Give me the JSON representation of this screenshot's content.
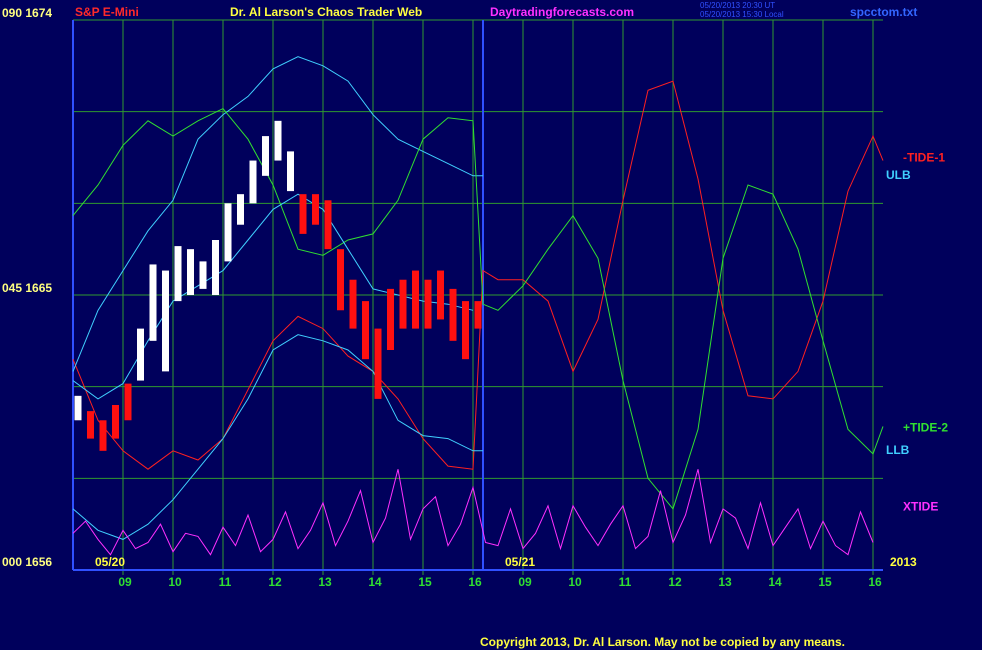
{
  "chart_data": {
    "type": "line",
    "symbol": "S&P E-Mini",
    "title": "Dr. Al Larson's Chaos Trader Web",
    "site": "Daytradingforecasts.com",
    "timestamps": [
      "05/20/2013 20:30 UT",
      "05/20/2013 15:30 Local"
    ],
    "file": "spcctom.txt",
    "copyright": "Copyright 2013, Dr. Al Larson. May not be copied by any means.",
    "year": "2013",
    "days": [
      {
        "label": "05/20",
        "x": 0
      },
      {
        "label": "05/21",
        "x": 8.2
      }
    ],
    "divider_x": 8.2,
    "xlim": [
      0,
      16.2
    ],
    "xticks": [
      {
        "value": 1,
        "label": "09"
      },
      {
        "value": 2,
        "label": "10"
      },
      {
        "value": 3,
        "label": "11"
      },
      {
        "value": 4,
        "label": "12"
      },
      {
        "value": 5,
        "label": "13"
      },
      {
        "value": 6,
        "label": "14"
      },
      {
        "value": 7,
        "label": "15"
      },
      {
        "value": 8,
        "label": "16"
      },
      {
        "value": 9,
        "label": "09"
      },
      {
        "value": 10,
        "label": "10"
      },
      {
        "value": 11,
        "label": "11"
      },
      {
        "value": 12,
        "label": "12"
      },
      {
        "value": 13,
        "label": "13"
      },
      {
        "value": 14,
        "label": "14"
      },
      {
        "value": 15,
        "label": "15"
      },
      {
        "value": 16,
        "label": "16"
      }
    ],
    "ylim": [
      1656,
      1674
    ],
    "yticks": [
      {
        "value": 1656,
        "label": "000 1656"
      },
      {
        "value": 1665,
        "label": "045 1665"
      },
      {
        "value": 1674,
        "label": "090 1674"
      }
    ],
    "ygrid": [
      1659,
      1662,
      1668,
      1671
    ],
    "grid": true,
    "bars": {
      "x": [
        0.1,
        0.35,
        0.6,
        0.85,
        1.1,
        1.35,
        1.6,
        1.85,
        2.1,
        2.35,
        2.6,
        2.85,
        3.1,
        3.35,
        3.6,
        3.85,
        4.1,
        4.35,
        4.6,
        4.85,
        5.1,
        5.35,
        5.6,
        5.85,
        6.1,
        6.35,
        6.6,
        6.85,
        7.1,
        7.35,
        7.6,
        7.85,
        8.1
      ],
      "high": [
        1661.7,
        1661.2,
        1660.9,
        1661.4,
        1662.1,
        1663.9,
        1666.0,
        1665.8,
        1666.6,
        1666.5,
        1666.1,
        1666.8,
        1668.0,
        1668.3,
        1669.4,
        1670.2,
        1670.7,
        1669.7,
        1668.3,
        1668.3,
        1668.1,
        1666.5,
        1665.5,
        1664.8,
        1663.9,
        1665.2,
        1665.5,
        1665.8,
        1665.5,
        1665.8,
        1665.2,
        1664.8,
        1664.8
      ],
      "low": [
        1660.9,
        1660.3,
        1659.9,
        1660.3,
        1660.9,
        1662.2,
        1663.5,
        1662.5,
        1664.8,
        1665.0,
        1665.2,
        1665.0,
        1666.1,
        1667.3,
        1668.0,
        1668.9,
        1669.4,
        1668.4,
        1667.0,
        1667.3,
        1666.5,
        1664.5,
        1663.9,
        1662.9,
        1661.6,
        1663.2,
        1663.9,
        1663.9,
        1663.9,
        1664.2,
        1663.5,
        1662.9,
        1663.9
      ],
      "colors": [
        "#ffffff",
        "#ff1010",
        "#ff1010",
        "#ff1010",
        "#ff1010",
        "#ffffff",
        "#ffffff",
        "#ffffff",
        "#ffffff",
        "#ffffff",
        "#ffffff",
        "#ffffff",
        "#ffffff",
        "#ffffff",
        "#ffffff",
        "#ffffff",
        "#ffffff",
        "#ffffff",
        "#ff1010",
        "#ff1010",
        "#ff1010",
        "#ff1010",
        "#ff1010",
        "#ff1010",
        "#ff1010",
        "#ff1010",
        "#ff1010",
        "#ff1010",
        "#ff1010",
        "#ff1010",
        "#ff1010",
        "#ff1010",
        "#ff1010"
      ]
    },
    "series": [
      {
        "name": "-TIDE-1",
        "color": "#ff2020",
        "x": [
          0,
          0.5,
          1,
          1.5,
          2,
          2.5,
          3,
          3.5,
          4,
          4.5,
          5,
          5.5,
          6,
          6.5,
          7,
          7.5,
          8,
          8.2,
          8.5,
          9,
          9.5,
          10,
          10.5,
          11,
          11.5,
          12,
          12.5,
          13,
          13.5,
          14,
          14.5,
          15,
          15.5,
          16,
          16.2
        ],
        "values": [
          1662.9,
          1660.9,
          1659.9,
          1659.3,
          1659.9,
          1659.6,
          1660.3,
          1661.9,
          1663.5,
          1664.3,
          1663.9,
          1663.0,
          1662.5,
          1661.6,
          1660.3,
          1659.4,
          1659.3,
          1665.8,
          1665.5,
          1665.5,
          1664.8,
          1662.5,
          1664.2,
          1668.1,
          1671.7,
          1672.0,
          1668.8,
          1664.5,
          1661.7,
          1661.6,
          1662.5,
          1664.8,
          1668.4,
          1670.2,
          1669.4
        ]
      },
      {
        "name": "ULB",
        "color": "#40d0ff",
        "x": [
          0,
          0.5,
          1,
          1.5,
          2,
          2.5,
          3,
          3.5,
          4,
          4.5,
          5,
          5.5,
          6,
          6.5,
          7,
          7.5,
          8,
          8.2
        ],
        "values": [
          1662.5,
          1664.5,
          1665.8,
          1667.1,
          1668.1,
          1670.1,
          1670.9,
          1671.5,
          1672.4,
          1672.8,
          1672.5,
          1672.0,
          1670.9,
          1670.1,
          1669.7,
          1669.3,
          1668.9,
          1668.9
        ]
      },
      {
        "name": "+TIDE-2",
        "color": "#30e030",
        "x": [
          0,
          0.5,
          1,
          1.5,
          2,
          2.5,
          3,
          3.5,
          4,
          4.5,
          5,
          5.5,
          6,
          6.5,
          7,
          7.5,
          8,
          8.2,
          8.5,
          9,
          9.5,
          10,
          10.5,
          11,
          11.5,
          12,
          12.5,
          13,
          13.5,
          14,
          14.5,
          15,
          15.5,
          16,
          16.2
        ],
        "values": [
          1667.6,
          1668.6,
          1669.9,
          1670.7,
          1670.2,
          1670.7,
          1671.1,
          1670.1,
          1668.6,
          1666.5,
          1666.3,
          1666.8,
          1667.0,
          1668.1,
          1670.1,
          1670.8,
          1670.7,
          1664.7,
          1664.5,
          1665.3,
          1666.5,
          1667.6,
          1666.2,
          1662.2,
          1659.0,
          1658.0,
          1660.6,
          1666.2,
          1668.6,
          1668.3,
          1666.5,
          1663.5,
          1660.6,
          1659.8,
          1660.7
        ]
      },
      {
        "name": "LLB",
        "color": "#40d0ff",
        "x": [
          0,
          0.5,
          1,
          1.5,
          2,
          2.5,
          3,
          3.5,
          4,
          4.5,
          5,
          5.5,
          6,
          6.5,
          7,
          7.5,
          8,
          8.2
        ],
        "values": [
          1658.0,
          1657.3,
          1657.0,
          1657.5,
          1658.3,
          1659.3,
          1660.3,
          1661.6,
          1663.2,
          1663.7,
          1663.5,
          1663.2,
          1662.5,
          1660.9,
          1660.4,
          1660.3,
          1659.9,
          1659.9
        ]
      },
      {
        "name": "XTIDE",
        "color": "#ff30ff",
        "x": [
          0,
          0.25,
          0.5,
          0.75,
          1,
          1.25,
          1.5,
          1.75,
          2,
          2.25,
          2.5,
          2.75,
          3,
          3.25,
          3.5,
          3.75,
          4,
          4.25,
          4.5,
          4.75,
          5,
          5.25,
          5.5,
          5.75,
          6,
          6.25,
          6.5,
          6.75,
          7,
          7.25,
          7.5,
          7.75,
          8,
          8.25,
          8.5,
          8.75,
          9,
          9.25,
          9.5,
          9.75,
          10,
          10.25,
          10.5,
          10.75,
          11,
          11.25,
          11.5,
          11.75,
          12,
          12.25,
          12.5,
          12.75,
          13,
          13.25,
          13.5,
          13.75,
          14,
          14.25,
          14.5,
          14.75,
          15,
          15.25,
          15.5,
          15.75,
          16
        ],
        "values": [
          1657.2,
          1657.6,
          1657.0,
          1656.5,
          1657.3,
          1656.7,
          1656.9,
          1657.5,
          1656.6,
          1657.2,
          1657.1,
          1656.5,
          1657.4,
          1656.8,
          1657.8,
          1656.6,
          1657.0,
          1657.9,
          1656.7,
          1657.3,
          1658.2,
          1656.8,
          1657.6,
          1658.6,
          1656.9,
          1657.7,
          1659.3,
          1657.0,
          1658.0,
          1658.4,
          1656.8,
          1657.5,
          1658.7,
          1656.9,
          1656.8,
          1658.0,
          1656.7,
          1657.2,
          1658.1,
          1656.7,
          1658.1,
          1657.4,
          1656.8,
          1657.5,
          1658.1,
          1656.7,
          1657.1,
          1658.6,
          1656.9,
          1657.8,
          1659.3,
          1656.9,
          1658.0,
          1657.7,
          1656.7,
          1658.2,
          1656.8,
          1657.4,
          1658.0,
          1656.7,
          1657.6,
          1656.8,
          1656.5,
          1657.9,
          1656.9
        ]
      },
      {
        "color": "#40d0ff",
        "x": [
          0,
          0.5,
          1,
          1.5,
          2,
          2.5,
          3,
          3.5,
          4,
          4.5,
          5,
          5.5,
          6,
          6.5,
          7,
          7.5,
          8
        ],
        "values": [
          1662.2,
          1661.6,
          1662.1,
          1663.5,
          1664.8,
          1665.3,
          1665.8,
          1666.8,
          1667.8,
          1668.3,
          1667.8,
          1666.5,
          1665.2,
          1665.0,
          1664.8,
          1664.7,
          1664.5
        ]
      }
    ]
  }
}
